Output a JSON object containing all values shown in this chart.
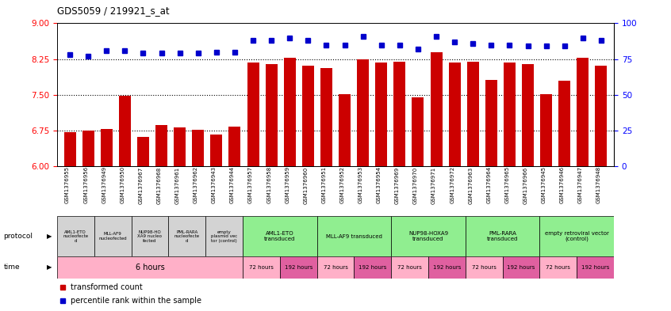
{
  "title": "GDS5059 / 219921_s_at",
  "samples": [
    "GSM1376955",
    "GSM1376956",
    "GSM1376949",
    "GSM1376950",
    "GSM1376967",
    "GSM1376968",
    "GSM1376961",
    "GSM1376962",
    "GSM1376943",
    "GSM1376944",
    "GSM1376957",
    "GSM1376958",
    "GSM1376959",
    "GSM1376960",
    "GSM1376951",
    "GSM1376952",
    "GSM1376953",
    "GSM1376954",
    "GSM1376969",
    "GSM1376970",
    "GSM1376971",
    "GSM1376972",
    "GSM1376963",
    "GSM1376964",
    "GSM1376965",
    "GSM1376966",
    "GSM1376945",
    "GSM1376946",
    "GSM1376947",
    "GSM1376948"
  ],
  "bar_values": [
    6.72,
    6.75,
    6.78,
    7.48,
    6.62,
    6.86,
    6.82,
    6.77,
    6.67,
    6.84,
    8.18,
    8.15,
    8.27,
    8.12,
    8.06,
    7.52,
    8.25,
    8.18,
    8.2,
    7.45,
    8.4,
    8.18,
    8.2,
    7.82,
    8.18,
    8.14,
    7.52,
    7.8,
    8.28,
    8.12
  ],
  "percentile_values": [
    78,
    77,
    81,
    81,
    79,
    79,
    79,
    79,
    80,
    80,
    88,
    88,
    90,
    88,
    85,
    85,
    91,
    85,
    85,
    82,
    91,
    87,
    86,
    85,
    85,
    84,
    84,
    84,
    90,
    88
  ],
  "ylim_left": [
    6,
    9
  ],
  "ylim_right": [
    0,
    100
  ],
  "yticks_left": [
    6,
    6.75,
    7.5,
    8.25,
    9
  ],
  "yticks_right": [
    0,
    25,
    50,
    75,
    100
  ],
  "bar_color": "#cc0000",
  "dot_color": "#0000cc",
  "grey_protocols": [
    {
      "label": "AML1-ETO\nnucleofecte\nd",
      "start": 0,
      "end": 2
    },
    {
      "label": "MLL-AF9\nnucleofected",
      "start": 2,
      "end": 4
    },
    {
      "label": "NUP98-HO\nXA9 nucleo\nfected",
      "start": 4,
      "end": 6
    },
    {
      "label": "PML-RARA\nnucleofecte\nd",
      "start": 6,
      "end": 8
    },
    {
      "label": "empty\nplasmid vec\ntor (control)",
      "start": 8,
      "end": 10
    }
  ],
  "green_protocols": [
    {
      "label": "AML1-ETO\ntransduced",
      "start": 10,
      "end": 14
    },
    {
      "label": "MLL-AF9 transduced",
      "start": 14,
      "end": 18
    },
    {
      "label": "NUP98-HOXA9\ntransduced",
      "start": 18,
      "end": 22
    },
    {
      "label": "PML-RARA\ntransduced",
      "start": 22,
      "end": 26
    },
    {
      "label": "empty retroviral vector\n(control)",
      "start": 26,
      "end": 30
    }
  ],
  "time_groups": [
    {
      "label": "6 hours",
      "start": 0,
      "end": 10,
      "color": "#ffb0c8"
    },
    {
      "label": "72 hours",
      "start": 10,
      "end": 12,
      "color": "#ffb0c8"
    },
    {
      "label": "192 hours",
      "start": 12,
      "end": 14,
      "color": "#e060a0"
    },
    {
      "label": "72 hours",
      "start": 14,
      "end": 16,
      "color": "#ffb0c8"
    },
    {
      "label": "192 hours",
      "start": 16,
      "end": 18,
      "color": "#e060a0"
    },
    {
      "label": "72 hours",
      "start": 18,
      "end": 20,
      "color": "#ffb0c8"
    },
    {
      "label": "192 hours",
      "start": 20,
      "end": 22,
      "color": "#e060a0"
    },
    {
      "label": "72 hours",
      "start": 22,
      "end": 24,
      "color": "#ffb0c8"
    },
    {
      "label": "192 hours",
      "start": 24,
      "end": 26,
      "color": "#e060a0"
    },
    {
      "label": "72 hours",
      "start": 26,
      "end": 28,
      "color": "#ffb0c8"
    },
    {
      "label": "192 hours",
      "start": 28,
      "end": 30,
      "color": "#e060a0"
    }
  ]
}
